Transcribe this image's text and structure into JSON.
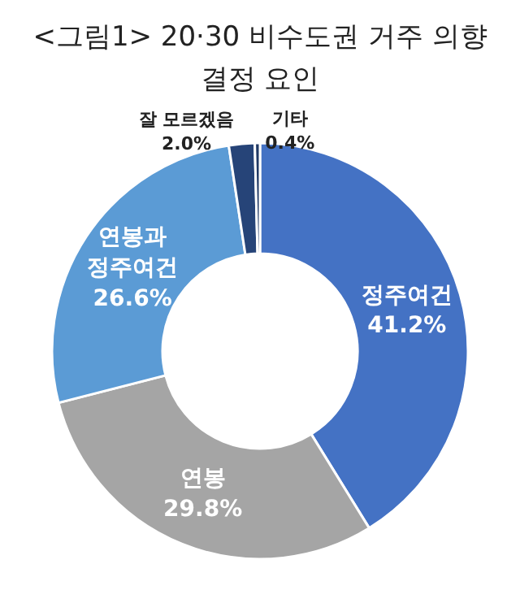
{
  "chart_data": {
    "type": "donut",
    "title": "<그림1> 20·30 비수도권 거주 의향 결정 요인",
    "categories": [
      "정주여건",
      "연봉",
      "연봉과 정주여건",
      "잘 모르겠음",
      "기타"
    ],
    "values": [
      41.2,
      29.8,
      26.6,
      2.0,
      0.4
    ],
    "colors": [
      "#4472c4",
      "#a5a5a5",
      "#5b9bd5",
      "#264478",
      "#1f3864"
    ],
    "value_labels": [
      "41.2%",
      "29.8%",
      "26.6%",
      "2.0%",
      "0.4%"
    ]
  }
}
